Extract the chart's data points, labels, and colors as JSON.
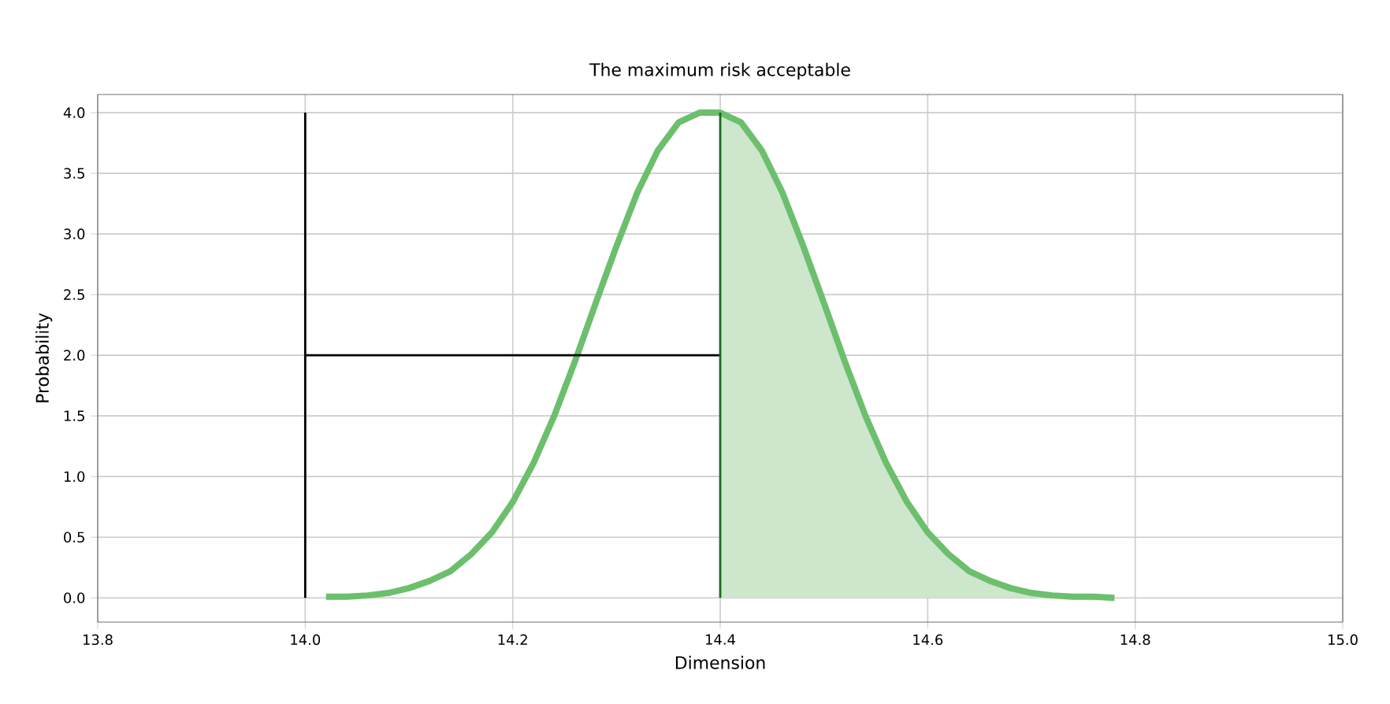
{
  "chart_data": {
    "type": "line",
    "title": "The maximum risk acceptable",
    "xlabel": "Dimension",
    "ylabel": "Probability",
    "xlim": [
      13.8,
      15.0
    ],
    "ylim": [
      -0.2,
      4.15
    ],
    "xticks": [
      {
        "value": 13.8,
        "label": "13.8"
      },
      {
        "value": 14.0,
        "label": "14.0"
      },
      {
        "value": 14.2,
        "label": "14.2"
      },
      {
        "value": 14.4,
        "label": "14.4"
      },
      {
        "value": 14.6,
        "label": "14.6"
      },
      {
        "value": 14.8,
        "label": "14.8"
      },
      {
        "value": 15.0,
        "label": "15.0"
      }
    ],
    "yticks": [
      {
        "value": 0,
        "label": "0.0"
      },
      {
        "value": 0.5,
        "label": "0.5"
      },
      {
        "value": 1,
        "label": "1.0"
      },
      {
        "value": 1.5,
        "label": "1.5"
      },
      {
        "value": 2,
        "label": "2.0"
      },
      {
        "value": 2.5,
        "label": "2.5"
      },
      {
        "value": 3,
        "label": "3.0"
      },
      {
        "value": 3.5,
        "label": "3.5"
      },
      {
        "value": 4,
        "label": "4.0"
      }
    ],
    "grid": true,
    "series": [
      {
        "type": "area",
        "color": "#cde6cc",
        "x": [
          14.4,
          14.42,
          14.44,
          14.46,
          14.48,
          14.5,
          14.52,
          14.54,
          14.56,
          14.58,
          14.6,
          14.62,
          14.64,
          14.66,
          14.68,
          14.7,
          14.72,
          14.74,
          14.76,
          14.78
        ],
        "values": [
          4.0,
          3.92,
          3.69,
          3.34,
          2.9,
          2.43,
          1.95,
          1.5,
          1.11,
          0.79,
          0.54,
          0.36,
          0.22,
          0.14,
          0.08,
          0.04,
          0.02,
          0.01,
          0.01,
          0.0
        ]
      },
      {
        "color": "#6cbf6c",
        "x": [
          14.02,
          14.04,
          14.06,
          14.08,
          14.1,
          14.12,
          14.14,
          14.16,
          14.18,
          14.2,
          14.22,
          14.24,
          14.26,
          14.28,
          14.3,
          14.32,
          14.34,
          14.36,
          14.38,
          14.4,
          14.42,
          14.44,
          14.46,
          14.48,
          14.5,
          14.52,
          14.54,
          14.56,
          14.58,
          14.6,
          14.62,
          14.64,
          14.66,
          14.68,
          14.7,
          14.72,
          14.74,
          14.76,
          14.78
        ],
        "values": [
          0.01,
          0.01,
          0.02,
          0.04,
          0.08,
          0.14,
          0.22,
          0.36,
          0.54,
          0.79,
          1.11,
          1.5,
          1.95,
          2.43,
          2.9,
          3.34,
          3.69,
          3.92,
          4.0,
          4.0,
          3.92,
          3.69,
          3.34,
          2.9,
          2.43,
          1.95,
          1.5,
          1.11,
          0.79,
          0.54,
          0.36,
          0.22,
          0.14,
          0.08,
          0.04,
          0.02,
          0.01,
          0.01,
          0.0
        ]
      },
      {
        "color": "#000000",
        "x": [
          14.0,
          14.0
        ],
        "values": [
          0,
          4.0
        ]
      },
      {
        "color": "#000000",
        "x": [
          14.0,
          14.4
        ],
        "values": [
          2.0,
          2.0
        ]
      },
      {
        "color": "#1a6b1a",
        "x": [
          14.4,
          14.4
        ],
        "values": [
          4.0,
          0.0
        ]
      }
    ]
  }
}
